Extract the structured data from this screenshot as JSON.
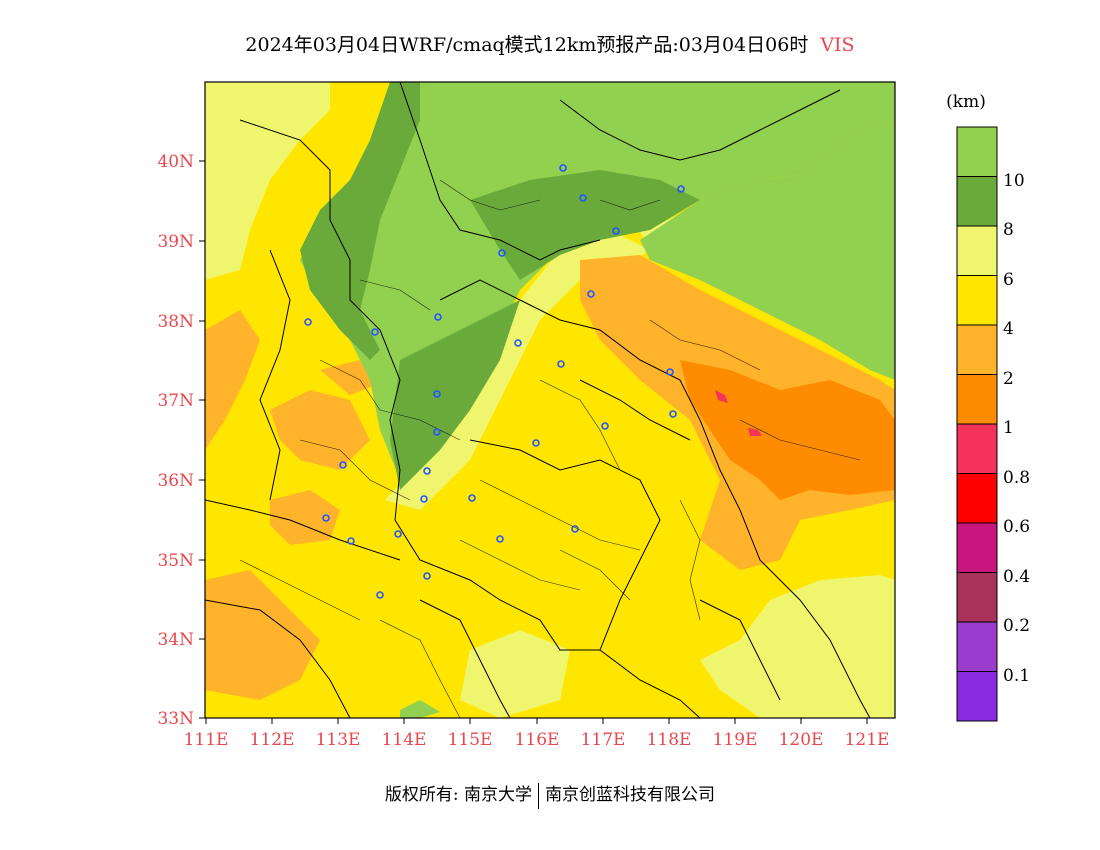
{
  "title": {
    "text": "2024年03月04日WRF/cmaq模式12km预报产品:03月04日06时",
    "variable": "VIS"
  },
  "map": {
    "lat_labels": [
      "40N",
      "39N",
      "38N",
      "37N",
      "36N",
      "35N",
      "34N",
      "33N"
    ],
    "lon_labels": [
      "111E",
      "112E",
      "113E",
      "114E",
      "115E",
      "116E",
      "117E",
      "118E",
      "119E",
      "120E",
      "121E"
    ],
    "colors": {
      "vis_gt10": "#92d050",
      "vis_8_10": "#6aaa3a",
      "vis_6_8": "#f0f56e",
      "vis_4_6": "#ffe600",
      "vis_2_4": "#ffb32a",
      "vis_1_2": "#ff8c00",
      "vis_0.8_1": "#f5325a",
      "blue_marker": "#2255ff",
      "border": "#000000"
    }
  },
  "colorbar": {
    "unit": "(km)",
    "labels": [
      "10",
      "8",
      "6",
      "4",
      "2",
      "1",
      "0.8",
      "0.6",
      "0.4",
      "0.2",
      "0.1"
    ],
    "bins": [
      {
        "color": "#92d050"
      },
      {
        "color": "#6aaa3a"
      },
      {
        "color": "#f0f56e"
      },
      {
        "color": "#ffe600"
      },
      {
        "color": "#ffb32a"
      },
      {
        "color": "#ff8c00"
      },
      {
        "color": "#f5325a"
      },
      {
        "color": "#ff0000"
      },
      {
        "color": "#c8167e"
      },
      {
        "color": "#a8325a"
      },
      {
        "color": "#9a3ccd"
      },
      {
        "color": "#8a2be2"
      }
    ]
  },
  "footer": {
    "copyright_left": "版权所有: 南京大学",
    "copyright_right": "南京创蓝科技有限公司"
  }
}
